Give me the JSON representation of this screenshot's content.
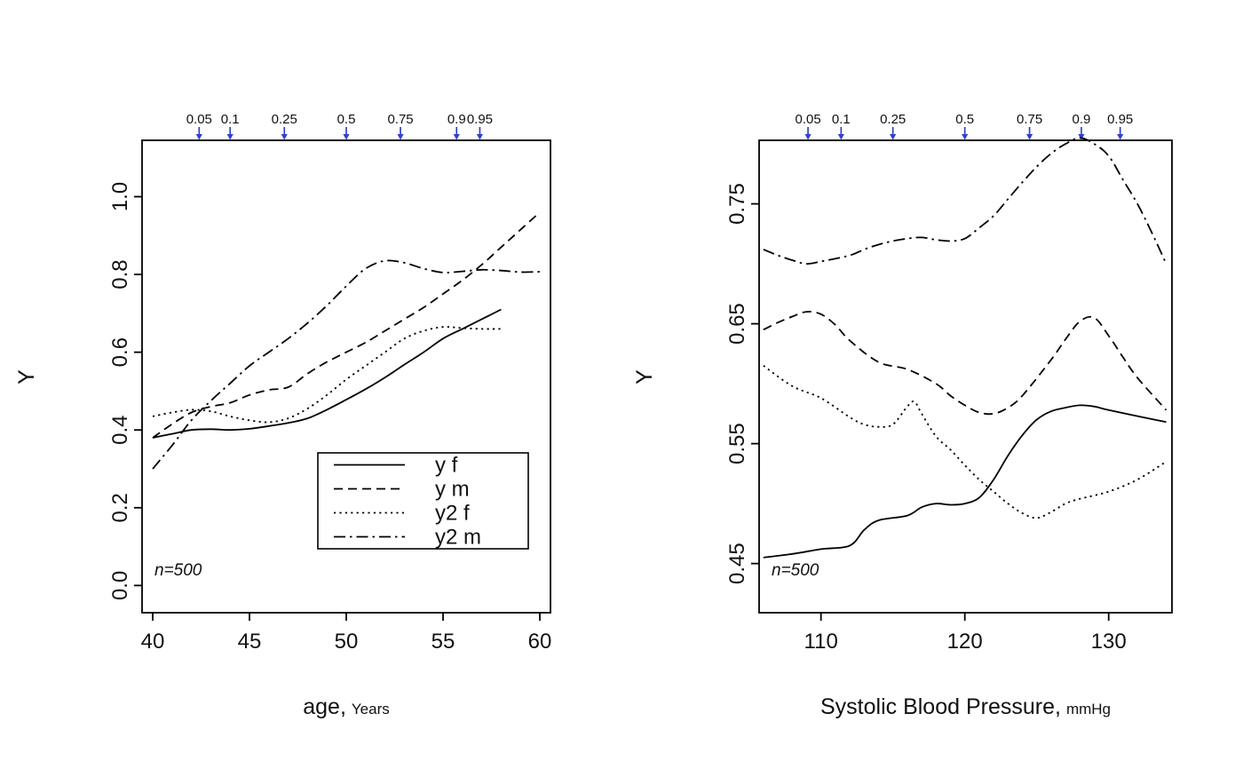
{
  "page": {
    "background": "#ffffff"
  },
  "chart_data": [
    {
      "id": "age",
      "type": "line",
      "xlabel": {
        "main": "age,",
        "unit": "Years"
      },
      "ylabel": "Y",
      "annotation": "n=500",
      "x_range": [
        39.45,
        60.55
      ],
      "y_range": [
        -0.07,
        1.145
      ],
      "x_ticks": [
        40,
        45,
        50,
        55,
        60
      ],
      "x_tick_labels": [
        "40",
        "45",
        "50",
        "55",
        "60"
      ],
      "y_ticks": [
        0.0,
        0.2,
        0.4,
        0.6,
        0.8,
        1.0
      ],
      "y_tick_labels": [
        "0.0",
        "0.2",
        "0.4",
        "0.6",
        "0.8",
        "1.0"
      ],
      "grid": false,
      "line_color": "#000000",
      "quantile_arrows": {
        "color": "#3340cc",
        "labels": [
          "0.05",
          "0.1",
          "0.25",
          "0.5",
          "0.75",
          "0.9",
          "0.95"
        ],
        "x": [
          42.4,
          44.0,
          46.8,
          50.0,
          52.8,
          55.7,
          56.9
        ]
      },
      "legend": {
        "show": true,
        "position": "inside-lower-right",
        "entries": [
          "y f",
          "y m",
          "y2 f",
          "y2 m"
        ]
      },
      "series": [
        {
          "name": "y f",
          "dash": "solid",
          "x": [
            40,
            41,
            42,
            43,
            44,
            45,
            46,
            47,
            48,
            49,
            50,
            51,
            52,
            53,
            54,
            55,
            56,
            57,
            58
          ],
          "y": [
            0.38,
            0.39,
            0.4,
            0.402,
            0.4,
            0.403,
            0.41,
            0.418,
            0.43,
            0.452,
            0.478,
            0.505,
            0.535,
            0.568,
            0.6,
            0.635,
            0.66,
            0.685,
            0.71
          ]
        },
        {
          "name": "y m",
          "dash": "dashed",
          "x": [
            40,
            41,
            42,
            43,
            44,
            45,
            46,
            47,
            48,
            49,
            50,
            51,
            52,
            53,
            54,
            55,
            56,
            57,
            58,
            59,
            60
          ],
          "y": [
            0.38,
            0.415,
            0.445,
            0.46,
            0.47,
            0.49,
            0.503,
            0.51,
            0.545,
            0.575,
            0.6,
            0.625,
            0.655,
            0.685,
            0.715,
            0.75,
            0.785,
            0.825,
            0.87,
            0.915,
            0.96
          ]
        },
        {
          "name": "y2 f",
          "dash": "dotted",
          "x": [
            40,
            41,
            42,
            43,
            44,
            45,
            46,
            47,
            48,
            49,
            50,
            51,
            52,
            53,
            54,
            55,
            56,
            57,
            58
          ],
          "y": [
            0.435,
            0.445,
            0.452,
            0.448,
            0.435,
            0.425,
            0.42,
            0.43,
            0.455,
            0.49,
            0.53,
            0.565,
            0.6,
            0.635,
            0.655,
            0.665,
            0.662,
            0.66,
            0.66
          ]
        },
        {
          "name": "y2 m",
          "dash": "dashdot",
          "x": [
            40,
            41,
            42,
            43,
            44,
            45,
            46,
            47,
            48,
            49,
            50,
            51,
            52,
            53,
            54,
            55,
            56,
            57,
            58,
            59,
            60
          ],
          "y": [
            0.3,
            0.36,
            0.425,
            0.475,
            0.52,
            0.565,
            0.6,
            0.635,
            0.675,
            0.72,
            0.77,
            0.815,
            0.835,
            0.83,
            0.815,
            0.805,
            0.808,
            0.812,
            0.81,
            0.806,
            0.807
          ]
        }
      ]
    },
    {
      "id": "sbp",
      "type": "line",
      "xlabel": {
        "main": "Systolic Blood Pressure,",
        "unit": "mmHg"
      },
      "ylabel": "Y",
      "annotation": "n=500",
      "x_range": [
        105.7,
        134.4
      ],
      "y_range": [
        0.409,
        0.803
      ],
      "x_ticks": [
        110,
        120,
        130
      ],
      "x_tick_labels": [
        "110",
        "120",
        "130"
      ],
      "y_ticks": [
        0.45,
        0.55,
        0.65,
        0.75
      ],
      "y_tick_labels": [
        "0.45",
        "0.55",
        "0.65",
        "0.75"
      ],
      "grid": false,
      "line_color": "#000000",
      "quantile_arrows": {
        "color": "#3340cc",
        "labels": [
          "0.05",
          "0.1",
          "0.25",
          "0.5",
          "0.75",
          "0.9",
          "0.95"
        ],
        "x": [
          109.1,
          111.4,
          115.0,
          120.0,
          124.5,
          128.1,
          130.8
        ]
      },
      "legend": {
        "show": false,
        "position": "",
        "entries": []
      },
      "series": [
        {
          "name": "y f",
          "dash": "solid",
          "x": [
            106,
            108,
            110,
            112,
            113,
            114,
            116,
            117,
            118,
            119,
            120,
            121,
            122,
            123,
            124,
            125,
            126,
            127,
            128,
            129,
            130,
            132,
            134
          ],
          "y": [
            0.455,
            0.458,
            0.462,
            0.465,
            0.478,
            0.486,
            0.49,
            0.497,
            0.5,
            0.499,
            0.5,
            0.505,
            0.52,
            0.54,
            0.557,
            0.57,
            0.577,
            0.58,
            0.582,
            0.581,
            0.578,
            0.573,
            0.568
          ]
        },
        {
          "name": "y m",
          "dash": "dashed",
          "x": [
            106,
            107,
            108,
            109,
            110,
            111,
            112,
            114,
            116,
            118,
            119,
            120,
            121,
            122,
            123,
            124,
            126,
            127,
            128,
            129,
            130,
            131,
            132,
            134
          ],
          "y": [
            0.645,
            0.651,
            0.656,
            0.66,
            0.658,
            0.649,
            0.636,
            0.618,
            0.612,
            0.6,
            0.59,
            0.582,
            0.576,
            0.575,
            0.58,
            0.59,
            0.62,
            0.637,
            0.652,
            0.655,
            0.64,
            0.622,
            0.605,
            0.578
          ]
        },
        {
          "name": "y2 f",
          "dash": "dotted",
          "x": [
            106,
            108,
            110,
            112,
            113,
            114,
            115,
            116,
            116.5,
            117,
            118,
            119,
            120,
            121,
            122,
            123,
            124,
            125,
            126,
            127,
            128,
            130,
            132,
            134
          ],
          "y": [
            0.615,
            0.598,
            0.588,
            0.572,
            0.566,
            0.564,
            0.566,
            0.581,
            0.585,
            0.575,
            0.556,
            0.545,
            0.532,
            0.52,
            0.51,
            0.5,
            0.492,
            0.488,
            0.493,
            0.5,
            0.504,
            0.51,
            0.52,
            0.535
          ]
        },
        {
          "name": "y2 m",
          "dash": "dashdot",
          "x": [
            106,
            107,
            108,
            109,
            110,
            112,
            113,
            114,
            115,
            116,
            117,
            118,
            119,
            120,
            121,
            122,
            123,
            124,
            125,
            126,
            127,
            128,
            129,
            130,
            131,
            132,
            133,
            134
          ],
          "y": [
            0.712,
            0.707,
            0.703,
            0.7,
            0.702,
            0.707,
            0.712,
            0.716,
            0.719,
            0.721,
            0.722,
            0.72,
            0.719,
            0.721,
            0.73,
            0.74,
            0.754,
            0.768,
            0.781,
            0.792,
            0.8,
            0.805,
            0.8,
            0.79,
            0.77,
            0.75,
            0.726,
            0.7
          ]
        }
      ]
    }
  ]
}
